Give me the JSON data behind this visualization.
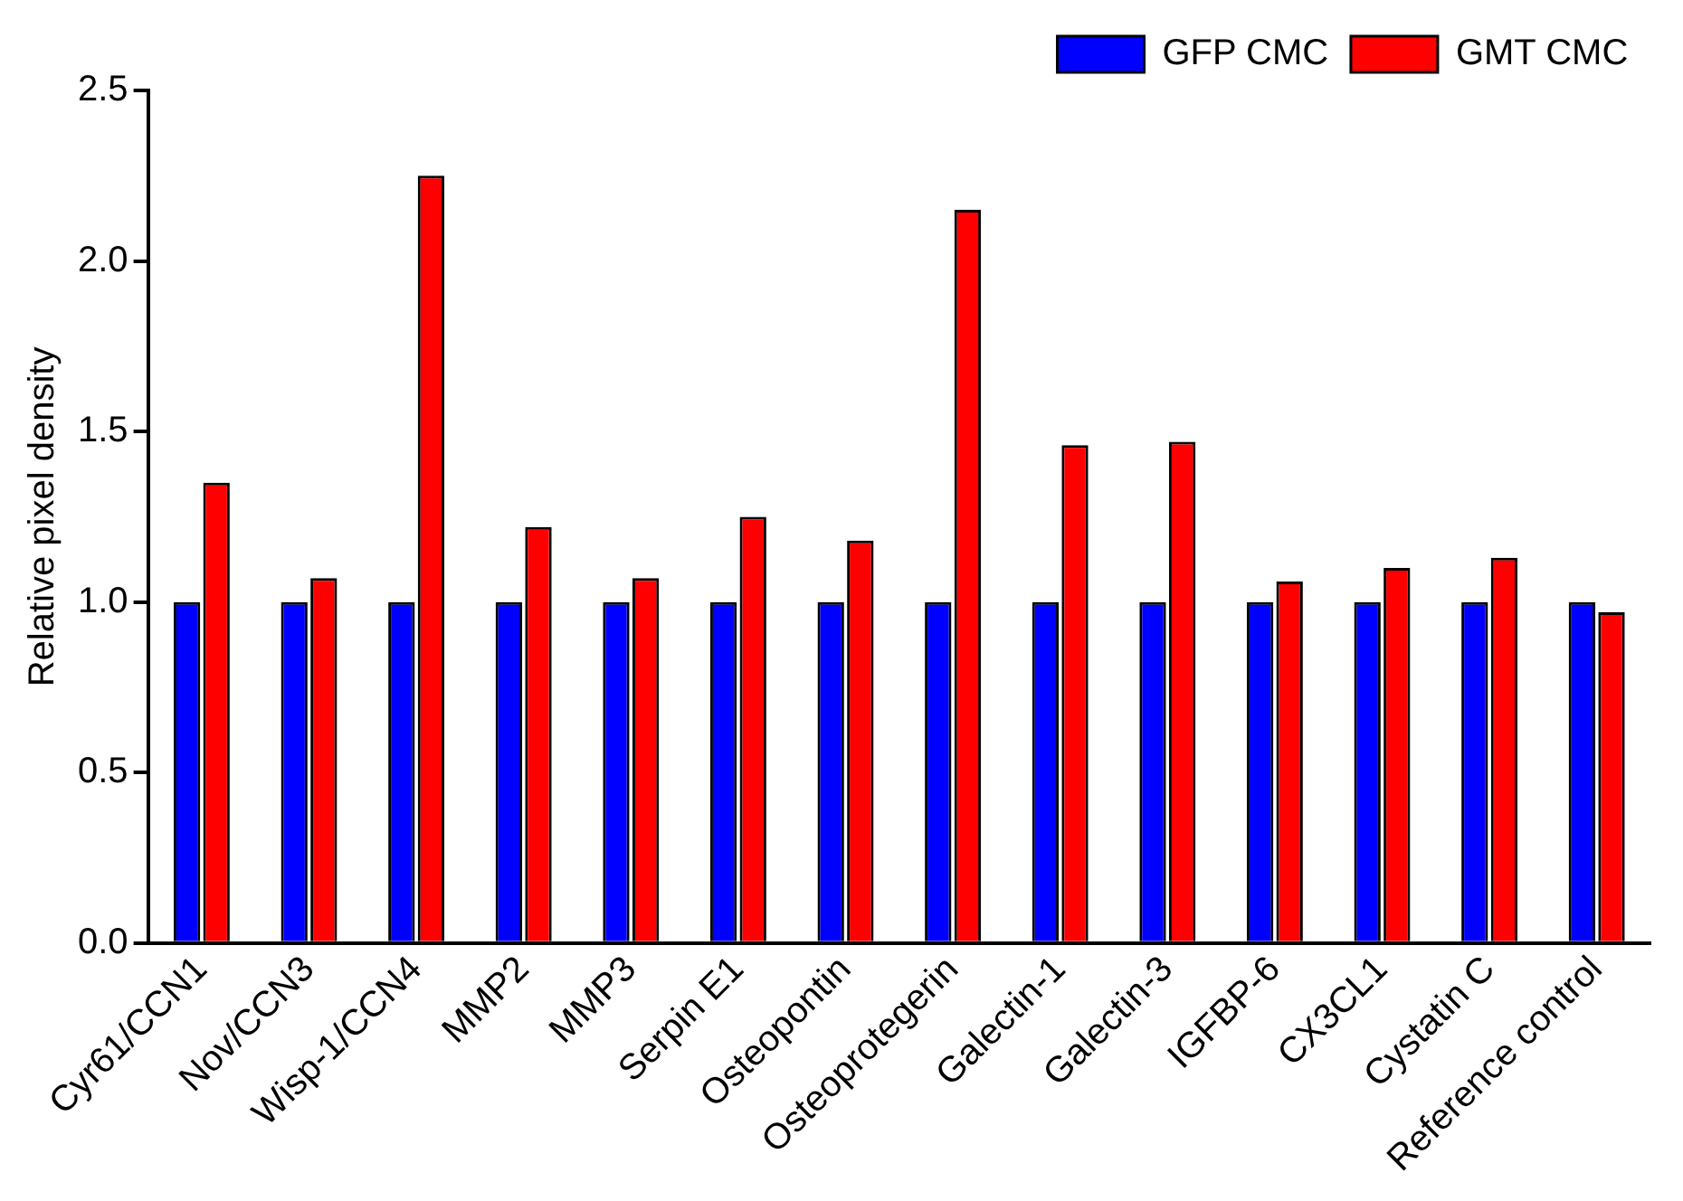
{
  "chart_data": {
    "type": "bar",
    "ylabel": "Relative pixel density",
    "categories": [
      "Cyr61/CCN1",
      "Nov/CCN3",
      "Wisp-1/CCN4",
      "MMP2",
      "MMP3",
      "Serpin E1",
      "Osteopontin",
      "Osteoprotegerin",
      "Galectin-1",
      "Galectin-3",
      "IGFBP-6",
      "CX3CL1",
      "Cystatin C",
      "Reference control"
    ],
    "series": [
      {
        "name": "GFP CMC",
        "color": "#0000ff",
        "values": [
          1.0,
          1.0,
          1.0,
          1.0,
          1.0,
          1.0,
          1.0,
          1.0,
          1.0,
          1.0,
          1.0,
          1.0,
          1.0,
          1.0
        ]
      },
      {
        "name": "GMT CMC",
        "color": "#ff0000",
        "values": [
          1.35,
          1.07,
          2.25,
          1.22,
          1.07,
          1.25,
          1.18,
          2.15,
          1.46,
          1.47,
          1.06,
          1.1,
          1.13,
          0.97
        ]
      }
    ],
    "ylim": [
      0,
      2.5
    ],
    "yticks": [
      {
        "value": 0,
        "label": "0.0"
      },
      {
        "value": 0.5,
        "label": "0.5"
      },
      {
        "value": 1,
        "label": "1.0"
      },
      {
        "value": 1.5,
        "label": "1.5"
      },
      {
        "value": 2,
        "label": "2.0"
      },
      {
        "value": 2.5,
        "label": "2.5"
      }
    ],
    "legend": "top right"
  }
}
